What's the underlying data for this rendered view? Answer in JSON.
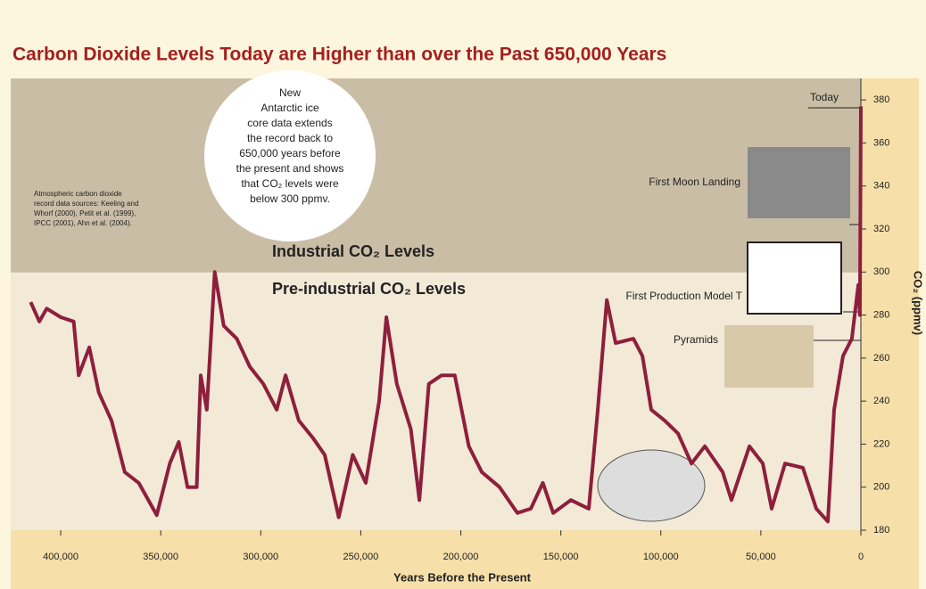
{
  "chart_data": {
    "type": "line",
    "title": "Carbon Dioxide Levels Today are Higher than over the Past 650,000 Years",
    "x_label": "Years Before the Present",
    "y_label": "CO₂ (ppmv)",
    "color": "#8e1f3c",
    "x": [
      415000,
      410700,
      407000,
      400000,
      393500,
      391000,
      385700,
      381000,
      374600,
      368000,
      361000,
      352000,
      345500,
      341000,
      336600,
      332000,
      330000,
      327000,
      323000,
      318500,
      312000,
      305500,
      298700,
      292000,
      287600,
      281000,
      274000,
      268000,
      261000,
      254000,
      247500,
      240800,
      237200,
      232000,
      225000,
      220700,
      216000,
      209600,
      203000,
      196000,
      189500,
      180600,
      171700,
      165000,
      159000,
      153800,
      145000,
      136000,
      131500,
      127000,
      122600,
      113700,
      109200,
      104800,
      98100,
      91400,
      84700,
      78000,
      69100,
      64700,
      55700,
      49000,
      44600,
      37900,
      29000,
      22300,
      16500,
      13400,
      8900,
      4500,
      1300,
      500,
      0
    ],
    "values": [
      286,
      277,
      283,
      279,
      277,
      252,
      265,
      244,
      231,
      207,
      202,
      187,
      211,
      221,
      200,
      200,
      252,
      236,
      300,
      275,
      269,
      256,
      248,
      236,
      252,
      231,
      223,
      215,
      186,
      215,
      202,
      240,
      279,
      248,
      227,
      194,
      248,
      252,
      252,
      219,
      207,
      200,
      188,
      190,
      202,
      188,
      194,
      190,
      236,
      287,
      267,
      269,
      261,
      236,
      231,
      225,
      211,
      219,
      207,
      194,
      219,
      211,
      190,
      211,
      209,
      190,
      184,
      236,
      261,
      269,
      294,
      280,
      377
    ],
    "xlim": [
      425000,
      0
    ],
    "ylim": [
      180,
      390
    ],
    "xticks": [
      {
        "value": 400000,
        "label": "400,000"
      },
      {
        "value": 350000,
        "label": "350,000"
      },
      {
        "value": 300000,
        "label": "300,000"
      },
      {
        "value": 250000,
        "label": "250,000"
      },
      {
        "value": 200000,
        "label": "200,000"
      },
      {
        "value": 150000,
        "label": "150,000"
      },
      {
        "value": 100000,
        "label": "100,000"
      },
      {
        "value": 50000,
        "label": "50,000"
      },
      0
    ],
    "yticks": [
      180,
      200,
      220,
      240,
      260,
      280,
      300,
      320,
      340,
      360,
      380
    ],
    "threshold": 300,
    "region_labels": [
      "Industrial CO₂ Levels",
      "Pre-industrial CO₂ Levels"
    ],
    "annotations": [
      "Today",
      "First Moon Landing",
      "First Production Model T",
      "Pyramids"
    ],
    "bubble": [
      "New",
      "Antarctic ice",
      "core data extends",
      "the record back to",
      "650,000 years before",
      "the present and shows",
      "that CO₂ levels were",
      "below 300 ppmv."
    ],
    "source": [
      "Atmospheric carbon dioxide",
      "record data sources: Keeling and",
      "Whorf (2000), Petit et al. (1999),",
      "IPCC (2001), Ahn et al. (2004)."
    ]
  }
}
